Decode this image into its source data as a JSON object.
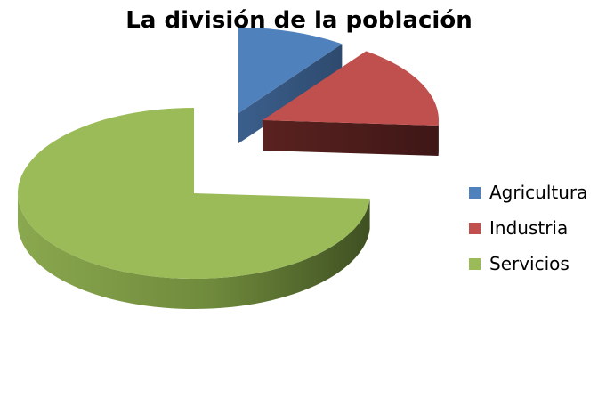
{
  "chart_data": {
    "type": "pie",
    "title": "La división de la población",
    "categories": [
      "Agricultura",
      "Industria",
      "Servicios"
    ],
    "values": [
      10,
      16,
      74
    ],
    "colors": [
      "#4F81BD",
      "#C0504D",
      "#9BBB59"
    ],
    "exploded": true,
    "three_d": true,
    "legend_position": "right"
  }
}
